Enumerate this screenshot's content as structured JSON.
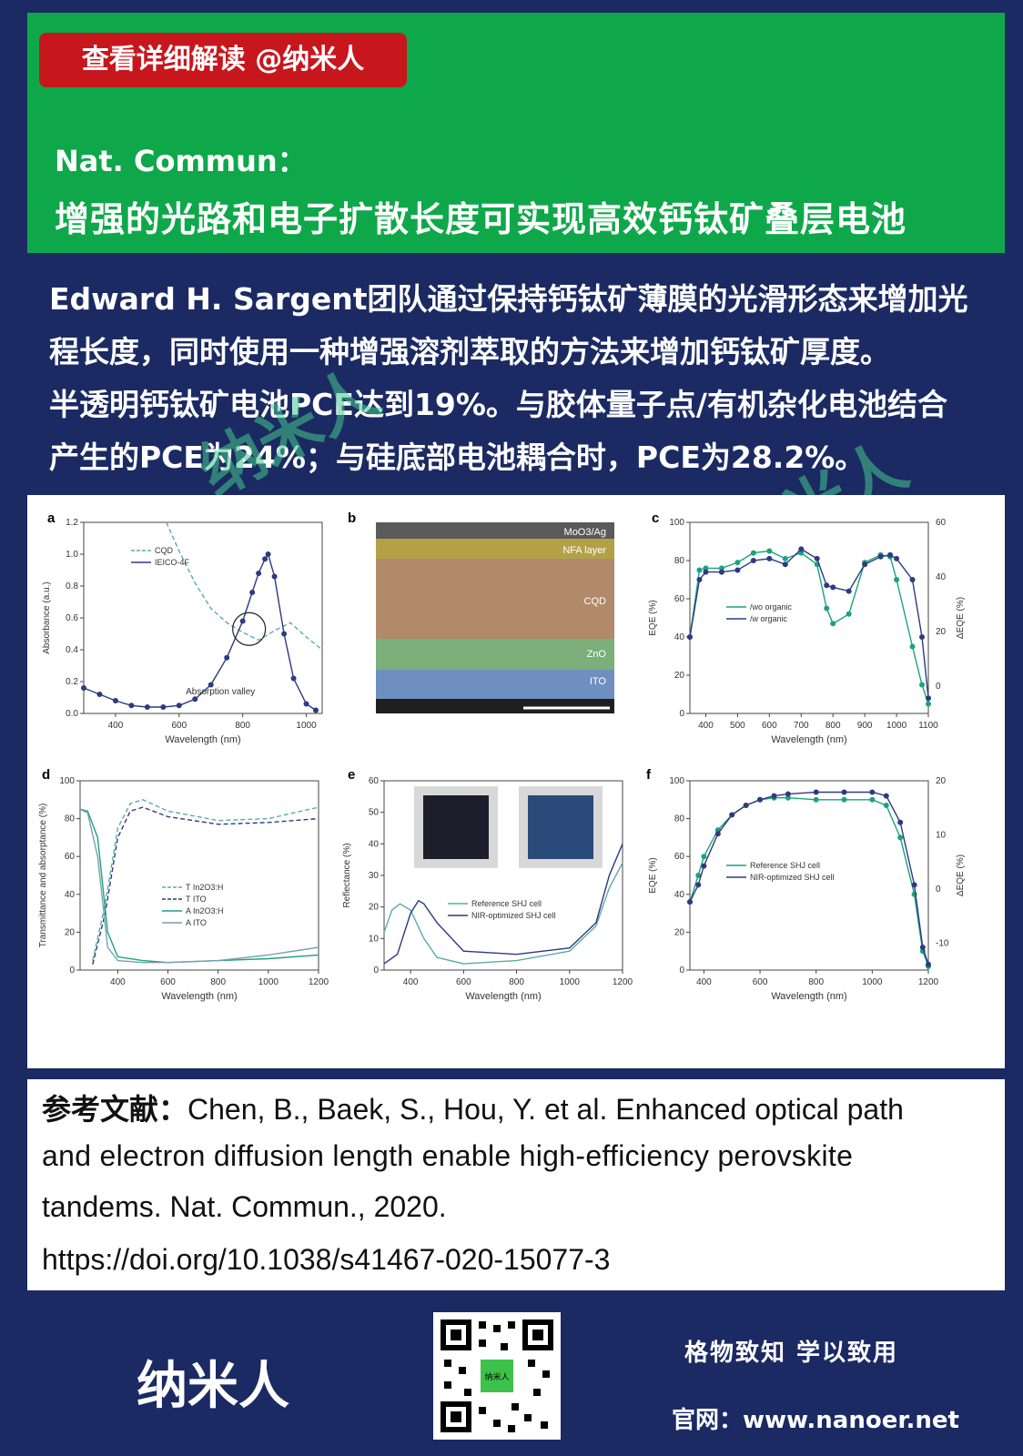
{
  "header": {
    "tag": "查看详细解读 @纳米人",
    "journal": "Nat. Commun：",
    "title": "增强的光路和电子扩散长度可实现高效钙钛矿叠层电池"
  },
  "summary": {
    "line1": "Edward H. Sargent团队通过保持钙钛矿薄膜的光滑形态来增加光",
    "line2": "程长度，同时使用一种增强溶剂萃取的方法来增加钙钛矿厚度。",
    "line3": "半透明钙钛矿电池PCE达到19%。与胶体量子点/有机杂化电池结合",
    "line4": "产生的PCE为24%；与硅底部电池耦合时，PCE为28.2%。"
  },
  "watermark": "纳米人",
  "figure": {
    "panel_letters": [
      "a",
      "b",
      "c",
      "d",
      "e",
      "f"
    ],
    "b_layers": [
      "MoO3/Ag",
      "NFA layer",
      "CQD",
      "ZnO",
      "ITO"
    ],
    "a_annotation": "Absorption valley",
    "d_legend": [
      "T In2O3:H",
      "A In2O3:H",
      "T ITO",
      "A ITO"
    ]
  },
  "chart_data": [
    {
      "panel": "a",
      "type": "line",
      "xlabel": "Wavelength (nm)",
      "ylabel": "Absorbance (a.u.)",
      "xlim": [
        300,
        1050
      ],
      "ylim": [
        0,
        1.2
      ],
      "xticks": [
        400,
        600,
        800,
        1000
      ],
      "yticks": [
        0.0,
        0.2,
        0.4,
        0.6,
        0.8,
        1.0,
        1.2
      ],
      "series": [
        {
          "name": "CQD",
          "style": "dashed",
          "color": "#5aaea0",
          "x": [
            560,
            600,
            650,
            700,
            750,
            800,
            850,
            900,
            950,
            1000,
            1050
          ],
          "y": [
            1.2,
            1.02,
            0.82,
            0.66,
            0.57,
            0.51,
            0.46,
            0.52,
            0.57,
            0.48,
            0.4
          ]
        },
        {
          "name": "IEICO-4F",
          "style": "line-markers",
          "color": "#2e3a80",
          "x": [
            300,
            350,
            400,
            450,
            500,
            550,
            600,
            650,
            700,
            750,
            800,
            830,
            850,
            870,
            880,
            900,
            930,
            960,
            1000,
            1030
          ],
          "y": [
            0.16,
            0.12,
            0.08,
            0.05,
            0.04,
            0.04,
            0.05,
            0.09,
            0.18,
            0.35,
            0.58,
            0.76,
            0.88,
            0.97,
            1.0,
            0.86,
            0.5,
            0.22,
            0.06,
            0.02
          ]
        }
      ]
    },
    {
      "panel": "c",
      "type": "line",
      "xlabel": "Wavelength (nm)",
      "ylabel": "EQE (%)",
      "y2label": "ΔEQE (%)",
      "xlim": [
        350,
        1100
      ],
      "ylim": [
        0,
        100
      ],
      "y2lim": [
        -10,
        60
      ],
      "xticks": [
        400,
        500,
        600,
        700,
        800,
        900,
        1000,
        1100
      ],
      "yticks": [
        0,
        20,
        40,
        60,
        80,
        100
      ],
      "y2ticks": [
        0,
        20,
        40,
        60
      ],
      "series": [
        {
          "name": "/wo organic",
          "color": "#1aa37e",
          "x": [
            350,
            380,
            400,
            450,
            500,
            550,
            600,
            650,
            700,
            750,
            780,
            800,
            850,
            900,
            950,
            980,
            1000,
            1050,
            1080,
            1100
          ],
          "y": [
            40,
            75,
            76,
            76,
            79,
            84,
            85,
            81,
            84,
            78,
            55,
            47,
            52,
            79,
            83,
            82,
            70,
            35,
            15,
            5
          ]
        },
        {
          "name": "/w organic",
          "color": "#2e3a80",
          "x": [
            350,
            380,
            400,
            450,
            500,
            550,
            600,
            650,
            700,
            750,
            780,
            800,
            850,
            900,
            950,
            980,
            1000,
            1050,
            1080,
            1100
          ],
          "y": [
            40,
            70,
            74,
            74,
            75,
            80,
            81,
            78,
            86,
            81,
            67,
            66,
            64,
            78,
            82,
            83,
            81,
            70,
            40,
            8
          ]
        }
      ]
    },
    {
      "panel": "d",
      "type": "line",
      "xlabel": "Wavelength (nm)",
      "ylabel": "Transmittance and absorptance (%)",
      "xlim": [
        250,
        1200
      ],
      "ylim": [
        0,
        100
      ],
      "xticks": [
        400,
        600,
        800,
        1000,
        1200
      ],
      "yticks": [
        0,
        20,
        40,
        60,
        80,
        100
      ],
      "series": [
        {
          "name": "T In2O3:H",
          "style": "dashed",
          "x": [
            300,
            350,
            400,
            450,
            500,
            600,
            800,
            1000,
            1200
          ],
          "y": [
            5,
            35,
            75,
            88,
            90,
            84,
            79,
            80,
            86
          ]
        },
        {
          "name": "T ITO",
          "style": "dashed",
          "x": [
            300,
            350,
            400,
            450,
            500,
            600,
            800,
            1000,
            1200
          ],
          "y": [
            3,
            30,
            70,
            84,
            86,
            81,
            77,
            78,
            80
          ]
        },
        {
          "name": "A In2O3:H",
          "style": "solid",
          "x": [
            250,
            280,
            320,
            360,
            400,
            500,
            600,
            800,
            1000,
            1200
          ],
          "y": [
            85,
            84,
            70,
            20,
            7,
            5,
            4,
            5,
            6,
            8
          ]
        },
        {
          "name": "A ITO",
          "style": "solid",
          "x": [
            250,
            280,
            320,
            360,
            400,
            500,
            600,
            800,
            1000,
            1200
          ],
          "y": [
            85,
            83,
            60,
            12,
            5,
            4,
            4,
            5,
            8,
            12
          ]
        }
      ]
    },
    {
      "panel": "e",
      "type": "line",
      "xlabel": "Wavelength (nm)",
      "ylabel": "Reflectance (%)",
      "xlim": [
        300,
        1200
      ],
      "ylim": [
        0,
        60
      ],
      "xticks": [
        400,
        600,
        800,
        1000,
        1200
      ],
      "yticks": [
        0,
        10,
        20,
        30,
        40,
        50,
        60
      ],
      "series": [
        {
          "name": "Reference SHJ cell",
          "x": [
            300,
            330,
            360,
            400,
            450,
            500,
            600,
            800,
            1000,
            1100,
            1150,
            1200
          ],
          "y": [
            12,
            19,
            21,
            19,
            10,
            4,
            2,
            3,
            6,
            14,
            26,
            34
          ]
        },
        {
          "name": "NIR-optimized SHJ cell",
          "x": [
            300,
            350,
            400,
            430,
            450,
            500,
            600,
            800,
            1000,
            1100,
            1150,
            1200
          ],
          "y": [
            2,
            5,
            18,
            22,
            21,
            15,
            6,
            5,
            7,
            15,
            30,
            40
          ]
        }
      ]
    },
    {
      "panel": "f",
      "type": "line",
      "xlabel": "Wavelength (nm)",
      "ylabel": "EQE (%)",
      "y2label": "ΔEQE (%)",
      "xlim": [
        350,
        1200
      ],
      "ylim": [
        0,
        100
      ],
      "y2lim": [
        -15,
        20
      ],
      "xticks": [
        400,
        600,
        800,
        1000,
        1200
      ],
      "yticks": [
        0,
        20,
        40,
        60,
        80,
        100
      ],
      "y2ticks": [
        -10,
        0,
        10,
        20
      ],
      "series": [
        {
          "name": "Reference SHJ cell",
          "color": "#1aa37e",
          "x": [
            350,
            380,
            400,
            450,
            500,
            550,
            600,
            650,
            700,
            800,
            900,
            1000,
            1050,
            1100,
            1150,
            1180,
            1200
          ],
          "y": [
            36,
            50,
            60,
            74,
            82,
            87,
            90,
            91,
            91,
            90,
            90,
            90,
            87,
            70,
            40,
            10,
            2
          ]
        },
        {
          "name": "NIR-optimized SHJ cell",
          "color": "#2e3a80",
          "x": [
            350,
            380,
            400,
            450,
            500,
            550,
            600,
            650,
            700,
            800,
            900,
            1000,
            1050,
            1100,
            1150,
            1180,
            1200
          ],
          "y": [
            36,
            45,
            55,
            72,
            82,
            87,
            90,
            92,
            93,
            94,
            94,
            94,
            92,
            78,
            45,
            12,
            3
          ]
        }
      ]
    }
  ],
  "reference": {
    "label": "参考文献：",
    "line1_rest": "Chen, B., Baek, S., Hou, Y. et al. Enhanced optical path",
    "line2": "and electron diffusion length enable high-efficiency perovskite",
    "line3": "tandems. Nat. Commun., 2020.",
    "line4": "https://doi.org/10.1038/s41467-020-15077-3"
  },
  "footer": {
    "brand": "纳米人",
    "motto": "格物致知  学以致用",
    "website": "官网：www.nanoer.net",
    "qr_label": "纳米人"
  }
}
